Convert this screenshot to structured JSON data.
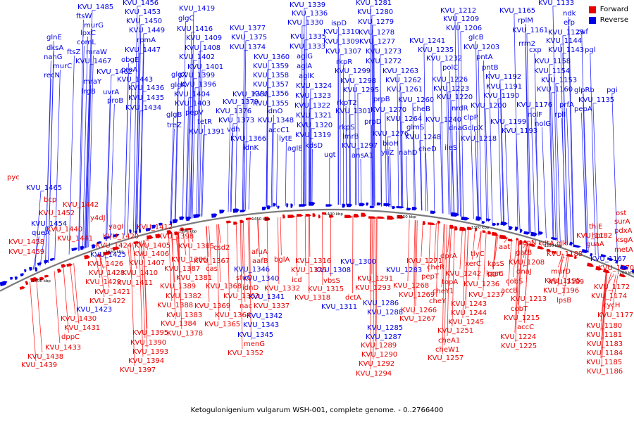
{
  "legend": {
    "forward": {
      "label": "Forward",
      "color": "#e80000"
    },
    "reverse": {
      "label": "Reverse",
      "color": "#0000e8"
    }
  },
  "caption": "Ketogulonigenium vulgarum WSH-001, complete genome. - 0..2766400",
  "axis_ticks": [
    "1600 kbp",
    "1550 kbp",
    "1500 kbp",
    "1450 kbp",
    "1400 kbp",
    "1350 kbp",
    "1300 kbp",
    "1250 kbp",
    "1200 kbp"
  ],
  "reverse_labels": [
    [
      "KVU_1485",
      110,
      13
    ],
    [
      "ftsW",
      108,
      26
    ],
    [
      "murG",
      119,
      39
    ],
    [
      "lpxC",
      114,
      50
    ],
    [
      "comL",
      109,
      63
    ],
    [
      "ftsZ",
      95,
      77
    ],
    [
      "mraW",
      122,
      77
    ],
    [
      "glnE",
      66,
      56
    ],
    [
      "dksA",
      66,
      71
    ],
    [
      "nahG",
      62,
      84
    ],
    [
      "murC",
      75,
      97
    ],
    [
      "recN",
      62,
      110
    ],
    [
      "KVU_1467",
      107,
      90
    ],
    [
      "mraY",
      118,
      119
    ],
    [
      "lrgB",
      116,
      133
    ],
    [
      "KVU_1462",
      137,
      105
    ],
    [
      "uvrA",
      146,
      134
    ],
    [
      "proB",
      152,
      146
    ],
    [
      "KVU_1456",
      174,
      7
    ],
    [
      "KVU_1453",
      177,
      20
    ],
    [
      "KVU_1450",
      179,
      33
    ],
    [
      "KVU_1449",
      183,
      46
    ],
    [
      "rpmA",
      194,
      60
    ],
    [
      "KVU_1447",
      177,
      74
    ],
    [
      "obgE",
      172,
      88
    ],
    [
      "proA",
      172,
      102
    ],
    [
      "KVU_1443",
      166,
      116
    ],
    [
      "KVU_1436",
      182,
      128
    ],
    [
      "KVU_1435",
      182,
      142
    ],
    [
      "KVU_1434",
      178,
      156
    ],
    [
      "KVU_1419",
      254,
      15
    ],
    [
      "glgC",
      253,
      29
    ],
    [
      "KVU_1416",
      251,
      44
    ],
    [
      "KVU_1409",
      264,
      57
    ],
    [
      "KVU_1408",
      262,
      71
    ],
    [
      "KVU_1402",
      254,
      84
    ],
    [
      "KVU_1401",
      266,
      98
    ],
    [
      "KVU_1399",
      254,
      110
    ],
    [
      "KVU_1396",
      256,
      123
    ],
    [
      "KVU_1404",
      247,
      137
    ],
    [
      "KVU_1403",
      248,
      150
    ],
    [
      "glgX",
      243,
      109
    ],
    [
      "glgA",
      242,
      124
    ],
    [
      "glgB",
      236,
      166
    ],
    [
      "treZ",
      237,
      181
    ],
    [
      "pepV",
      263,
      163
    ],
    [
      "tetR",
      280,
      176
    ],
    [
      "KVU_1391",
      268,
      190
    ],
    [
      "KVU_1377",
      326,
      43
    ],
    [
      "KVU_1375",
      328,
      56
    ],
    [
      "KVU_1374",
      326,
      70
    ],
    [
      "KVU_1380",
      330,
      137
    ],
    [
      "KVU_1379",
      316,
      148
    ],
    [
      "KVU_1376",
      306,
      161
    ],
    [
      "KVU_1373",
      310,
      174
    ],
    [
      "vdh",
      322,
      187
    ],
    [
      "KVU_1366",
      327,
      200
    ],
    [
      "KVU_1360",
      360,
      84
    ],
    [
      "KVU_1359",
      359,
      97
    ],
    [
      "KVU_1358",
      359,
      110
    ],
    [
      "KVU_1357",
      359,
      123
    ],
    [
      "KVU_1356",
      359,
      136
    ],
    [
      "KVU_1355",
      359,
      150
    ],
    [
      "idnO",
      378,
      161
    ],
    [
      "KVU_1348",
      366,
      174
    ],
    [
      "accC1",
      381,
      188
    ],
    [
      "lytE",
      396,
      200
    ],
    [
      "idnK",
      345,
      213
    ],
    [
      "aglE",
      408,
      214
    ],
    [
      "KVU_1339",
      411,
      10
    ],
    [
      "KVU_1336",
      414,
      22
    ],
    [
      "KVU_1330",
      408,
      35
    ],
    [
      "KVU_1335",
      412,
      55
    ],
    [
      "KVU_1333",
      411,
      69
    ],
    [
      "aglG",
      421,
      83
    ],
    [
      "aglA",
      421,
      97
    ],
    [
      "aglK",
      424,
      111
    ],
    [
      "KVU_1324",
      420,
      125
    ],
    [
      "KVU_1323",
      419,
      139
    ],
    [
      "KVU_1322",
      418,
      153
    ],
    [
      "KVU_1321",
      420,
      167
    ],
    [
      "KVU_1320",
      421,
      181
    ],
    [
      "KVU_1319",
      419,
      195
    ],
    [
      "kdsD",
      433,
      210
    ],
    [
      "ugt",
      460,
      223
    ],
    [
      "ispD",
      470,
      36
    ],
    [
      "KVU_1310",
      459,
      48
    ],
    [
      "KVU_1309",
      459,
      62
    ],
    [
      "KVU_1307",
      462,
      76
    ],
    [
      "rkpR",
      477,
      91
    ],
    [
      "KVU_1299",
      475,
      104
    ],
    [
      "KVU_1298",
      483,
      118
    ],
    [
      "KVU_1295",
      487,
      131
    ],
    [
      "rkpT2",
      478,
      149
    ],
    [
      "KVU_1301",
      476,
      161
    ],
    [
      "rkpS",
      481,
      184
    ],
    [
      "lmrB",
      486,
      197
    ],
    [
      "KVU_1297",
      485,
      210
    ],
    [
      "ansA1",
      499,
      224
    ],
    [
      "KVU_1281",
      505,
      7
    ],
    [
      "KVU_1280",
      507,
      20
    ],
    [
      "KVU_1279",
      508,
      34
    ],
    [
      "KVU_1278",
      509,
      49
    ],
    [
      "KVU_1277",
      510,
      62
    ],
    [
      "KVU_1273",
      519,
      76
    ],
    [
      "KVU_1272",
      519,
      90
    ],
    [
      "prpB",
      530,
      144
    ],
    [
      "KVU_1270",
      526,
      159
    ],
    [
      "prpD",
      517,
      176
    ],
    [
      "KVU_1276",
      529,
      193
    ],
    [
      "bioH",
      543,
      207
    ],
    [
      "yiiZ",
      541,
      220
    ],
    [
      "KVU_1263",
      543,
      104
    ],
    [
      "KVU_1262",
      547,
      117
    ],
    [
      "KVU_1261",
      549,
      130
    ],
    [
      "KVU_1260",
      565,
      145
    ],
    [
      "cheB",
      586,
      158
    ],
    [
      "KVU_1264",
      548,
      172
    ],
    [
      "glmS",
      577,
      184
    ],
    [
      "KVU_1248",
      575,
      198
    ],
    [
      "nahD",
      566,
      220
    ],
    [
      "cheD",
      594,
      215
    ],
    [
      "KVU_1241",
      581,
      61
    ],
    [
      "KVU_1235",
      593,
      74
    ],
    [
      "KVU_1232",
      605,
      86
    ],
    [
      "polC",
      628,
      99
    ],
    [
      "KVU_1226",
      613,
      116
    ],
    [
      "KVU_1223",
      615,
      129
    ],
    [
      "KVU_1220",
      620,
      141
    ],
    [
      "nrdR",
      641,
      157
    ],
    [
      "KVU_1240",
      604,
      173
    ],
    [
      "dnaG",
      637,
      185
    ],
    [
      "clpX",
      664,
      185
    ],
    [
      "clpP",
      658,
      170
    ],
    [
      "ileS",
      631,
      213
    ],
    [
      "KVU_1218",
      654,
      200
    ],
    [
      "KVU_1212",
      625,
      18
    ],
    [
      "KVU_1209",
      629,
      30
    ],
    [
      "KVU_1206",
      633,
      43
    ],
    [
      "glcB",
      665,
      56
    ],
    [
      "KVU_1203",
      658,
      70
    ],
    [
      "pntA",
      676,
      84
    ],
    [
      "pntB",
      684,
      99
    ],
    [
      "KVU_1192",
      689,
      112
    ],
    [
      "KVU_1191",
      690,
      126
    ],
    [
      "KVU_1190",
      686,
      139
    ],
    [
      "KVU_1200",
      668,
      153
    ],
    [
      "KVU_1199",
      696,
      176
    ],
    [
      "KVU_1193",
      712,
      189
    ],
    [
      "nolF",
      749,
      166
    ],
    [
      "nolG",
      759,
      179
    ],
    [
      "KVU_1165",
      709,
      18
    ],
    [
      "rplM",
      735,
      32
    ],
    [
      "KVU_1161",
      727,
      46
    ],
    [
      "rrm2",
      736,
      65
    ],
    [
      "cxp",
      751,
      74
    ],
    [
      "KVU_1158",
      759,
      90
    ],
    [
      "KVU_1154",
      758,
      104
    ],
    [
      "KVU_1153",
      768,
      117
    ],
    [
      "KVU_1160",
      762,
      130
    ],
    [
      "KVU_1176",
      733,
      152
    ],
    [
      "rplI",
      787,
      166
    ],
    [
      "prfA",
      794,
      152
    ],
    [
      "pepA",
      815,
      158
    ],
    [
      "glpRb",
      815,
      131
    ],
    [
      "KVU_1135",
      821,
      145
    ],
    [
      "pgi",
      861,
      131
    ],
    [
      "KVU_1133",
      764,
      7
    ],
    [
      "ndk",
      799,
      22
    ],
    [
      "efp",
      800,
      35
    ],
    [
      "zwf",
      818,
      48
    ],
    [
      "KVU_1125",
      778,
      49
    ],
    [
      "KVU_1144",
      775,
      61
    ],
    [
      "KVU_1143",
      778,
      74
    ],
    [
      "pgl",
      830,
      74
    ],
    [
      "KVU_1465",
      37,
      270
    ],
    [
      "KVU_1454",
      44,
      321
    ],
    [
      "queA",
      45,
      334
    ],
    [
      "KVU_1425",
      128,
      365
    ],
    [
      "KVU_1423",
      108,
      443
    ],
    [
      "KVU_1346",
      332,
      386
    ],
    [
      "KVU_1340",
      345,
      399
    ],
    [
      "KVU_1341",
      353,
      425
    ],
    [
      "KVU_1342",
      350,
      452
    ],
    [
      "KVU_1343",
      345,
      465
    ],
    [
      "KVU_1345",
      337,
      479
    ],
    [
      "KVU_1308",
      447,
      387
    ],
    [
      "KVU_1300",
      483,
      375
    ],
    [
      "KVU_1311",
      456,
      439
    ],
    [
      "KVU_1283",
      548,
      387
    ],
    [
      "KVU_1286",
      515,
      434
    ],
    [
      "KVU_1288",
      521,
      447
    ],
    [
      "KVU_1285",
      521,
      469
    ],
    [
      "KVU_1287",
      519,
      482
    ],
    [
      "KVU_1167",
      838,
      371
    ]
  ],
  "forward_labels": [
    [
      "pyc",
      10,
      255
    ],
    [
      "bcp",
      62,
      287
    ],
    [
      "KVU_1452",
      55,
      306
    ],
    [
      "KVU_1442",
      89,
      294
    ],
    [
      "y4dJ",
      128,
      313
    ],
    [
      "KVU_1440",
      66,
      329
    ],
    [
      "KVU_1441",
      81,
      342
    ],
    [
      "KVU_1458",
      12,
      347
    ],
    [
      "KVU_1459",
      12,
      361
    ],
    [
      "yagI",
      154,
      325
    ],
    [
      "KVU_1420",
      146,
      339
    ],
    [
      "KVU_1424",
      136,
      352
    ],
    [
      "KVU_1426",
      124,
      378
    ],
    [
      "KVU_1428",
      126,
      391
    ],
    [
      "KVU_1429",
      121,
      404
    ],
    [
      "KVU_1421",
      134,
      418
    ],
    [
      "KVU_1422",
      127,
      431
    ],
    [
      "KVU_1430",
      86,
      456
    ],
    [
      "KVU_1431",
      91,
      469
    ],
    [
      "dppC",
      87,
      482
    ],
    [
      "KVU_1433",
      64,
      497
    ],
    [
      "KVU_1438",
      39,
      510
    ],
    [
      "KVU_1439",
      30,
      522
    ],
    [
      "KVU_1412",
      194,
      326
    ],
    [
      "KVU_1405",
      191,
      352
    ],
    [
      "KVU_1406",
      189,
      364
    ],
    [
      "KVU_1407",
      183,
      377
    ],
    [
      "KVU_1410",
      173,
      391
    ],
    [
      "KVU_1411",
      166,
      405
    ],
    [
      "KVU_1395",
      188,
      476
    ],
    [
      "KVU_1390",
      185,
      490
    ],
    [
      "KVU_1393",
      188,
      503
    ],
    [
      "KVU_1394",
      182,
      516
    ],
    [
      "KVU_1397",
      170,
      529
    ],
    [
      "KVU_1398",
      224,
      339
    ],
    [
      "KVU_1385",
      253,
      353
    ],
    [
      "KVU_1386",
      243,
      372
    ],
    [
      "KVU_1387",
      233,
      385
    ],
    [
      "KVU_1381",
      250,
      398
    ],
    [
      "KVU_1389",
      227,
      410
    ],
    [
      "KVU_1382",
      235,
      424
    ],
    [
      "KVU_1388",
      223,
      437
    ],
    [
      "KVU_1383",
      236,
      451
    ],
    [
      "KVU_1384",
      228,
      463
    ],
    [
      "KVU_1378",
      237,
      477
    ],
    [
      "csd2",
      303,
      355
    ],
    [
      "KVU_1367",
      275,
      374
    ],
    [
      "cas",
      292,
      385
    ],
    [
      "KVU_1368",
      292,
      410
    ],
    [
      "KVU_1369",
      276,
      438
    ],
    [
      "KVU_1363",
      317,
      424
    ],
    [
      "KVU_1364",
      305,
      451
    ],
    [
      "KVU_1365",
      290,
      464
    ],
    [
      "sfuC",
      335,
      398
    ],
    [
      "afuA",
      357,
      361
    ],
    [
      "aafB",
      358,
      374
    ],
    [
      "KVU_1337",
      360,
      438
    ],
    [
      "nac",
      340,
      438
    ],
    [
      "idnD",
      344,
      412
    ],
    [
      "KVU_1332",
      375,
      413
    ],
    [
      "bglA",
      389,
      372
    ],
    [
      "menG",
      346,
      492
    ],
    [
      "KVU_1352",
      323,
      505
    ],
    [
      "KVU_1316",
      419,
      374
    ],
    [
      "KVU_1325",
      413,
      387
    ],
    [
      "icd",
      414,
      401
    ],
    [
      "KVU_1318",
      418,
      426
    ],
    [
      "vbsS",
      459,
      402
    ],
    [
      "KVU_1315",
      437,
      414
    ],
    [
      "dctA",
      490,
      426
    ],
    [
      "KVU_1291",
      507,
      399
    ],
    [
      "KVU_1293",
      504,
      412
    ],
    [
      "KVU_1289",
      512,
      494
    ],
    [
      "KVU_1290",
      513,
      507
    ],
    [
      "KVU_1292",
      509,
      520
    ],
    [
      "KVU_1294",
      505,
      534
    ],
    [
      "KVU_1271",
      577,
      374
    ],
    [
      "KVU_1268",
      558,
      409
    ],
    [
      "KVU_1269",
      566,
      422
    ],
    [
      "KVU_1266",
      569,
      444
    ],
    [
      "KVU_1267",
      567,
      456
    ],
    [
      "cheR",
      606,
      383
    ],
    [
      "pepT",
      598,
      396
    ],
    [
      "topA",
      627,
      404
    ],
    [
      "cheY1",
      614,
      417
    ],
    [
      "cheY",
      609,
      431
    ],
    [
      "cheA1",
      622,
      487
    ],
    [
      "cheW1",
      618,
      500
    ],
    [
      "KVU_1257",
      607,
      512
    ],
    [
      "dprA",
      625,
      367
    ],
    [
      "KVU_1242",
      632,
      392
    ],
    [
      "KVU_1236",
      658,
      407
    ],
    [
      "KVU_1237",
      665,
      422
    ],
    [
      "KVU_1243",
      640,
      435
    ],
    [
      "KVU_1244",
      640,
      448
    ],
    [
      "KVU_1245",
      636,
      461
    ],
    [
      "KVU_1251",
      621,
      473
    ],
    [
      "tlyC",
      668,
      364
    ],
    [
      "xerC",
      660,
      378
    ],
    [
      "pgm",
      692,
      392
    ],
    [
      "kpsS",
      692,
      378
    ],
    [
      "kpsC",
      690,
      392
    ],
    [
      "aat",
      708,
      354
    ],
    [
      "KVU_1208",
      722,
      376
    ],
    [
      "accB",
      711,
      416
    ],
    [
      "cobS",
      718,
      403
    ],
    [
      "cobT",
      725,
      442
    ],
    [
      "KVU_1213",
      725,
      428
    ],
    [
      "KVU_1215",
      715,
      455
    ],
    [
      "accC",
      734,
      468
    ],
    [
      "KVU_1224",
      710,
      482
    ],
    [
      "KVU_1225",
      711,
      495
    ],
    [
      "pepN",
      735,
      348
    ],
    [
      "gatB",
      732,
      362
    ],
    [
      "dnaJ",
      733,
      389
    ],
    [
      "kdtA",
      764,
      349
    ],
    [
      "glk",
      790,
      349
    ],
    [
      "KVU_1188",
      776,
      364
    ],
    [
      "KVU_1189",
      778,
      404
    ],
    [
      "murD",
      782,
      389
    ],
    [
      "KVU_1195",
      773,
      402
    ],
    [
      "KVU_1196",
      771,
      416
    ],
    [
      "lpsB",
      790,
      430
    ],
    [
      "KVU_1182",
      818,
      338
    ],
    [
      "thiE",
      836,
      325
    ],
    [
      "hpt",
      840,
      338
    ],
    [
      "guaA",
      832,
      350
    ],
    [
      "ost",
      874,
      306
    ],
    [
      "surA",
      872,
      318
    ],
    [
      "pdxA",
      872,
      331
    ],
    [
      "ksgA",
      874,
      344
    ],
    [
      "metA",
      872,
      358
    ],
    [
      "KVU_1170",
      849,
      384
    ],
    [
      "KVU_1172",
      843,
      411
    ],
    [
      "KVU_1174",
      839,
      424
    ],
    [
      "cycH",
      856,
      437
    ],
    [
      "KVU_1177",
      848,
      451
    ],
    [
      "KVU_1180",
      832,
      466
    ],
    [
      "KVU_1181",
      832,
      479
    ],
    [
      "KVU_1183",
      833,
      492
    ],
    [
      "KVU_1184",
      833,
      505
    ],
    [
      "KVU_1185",
      832,
      518
    ],
    [
      "KVU_1186",
      833,
      531
    ]
  ]
}
